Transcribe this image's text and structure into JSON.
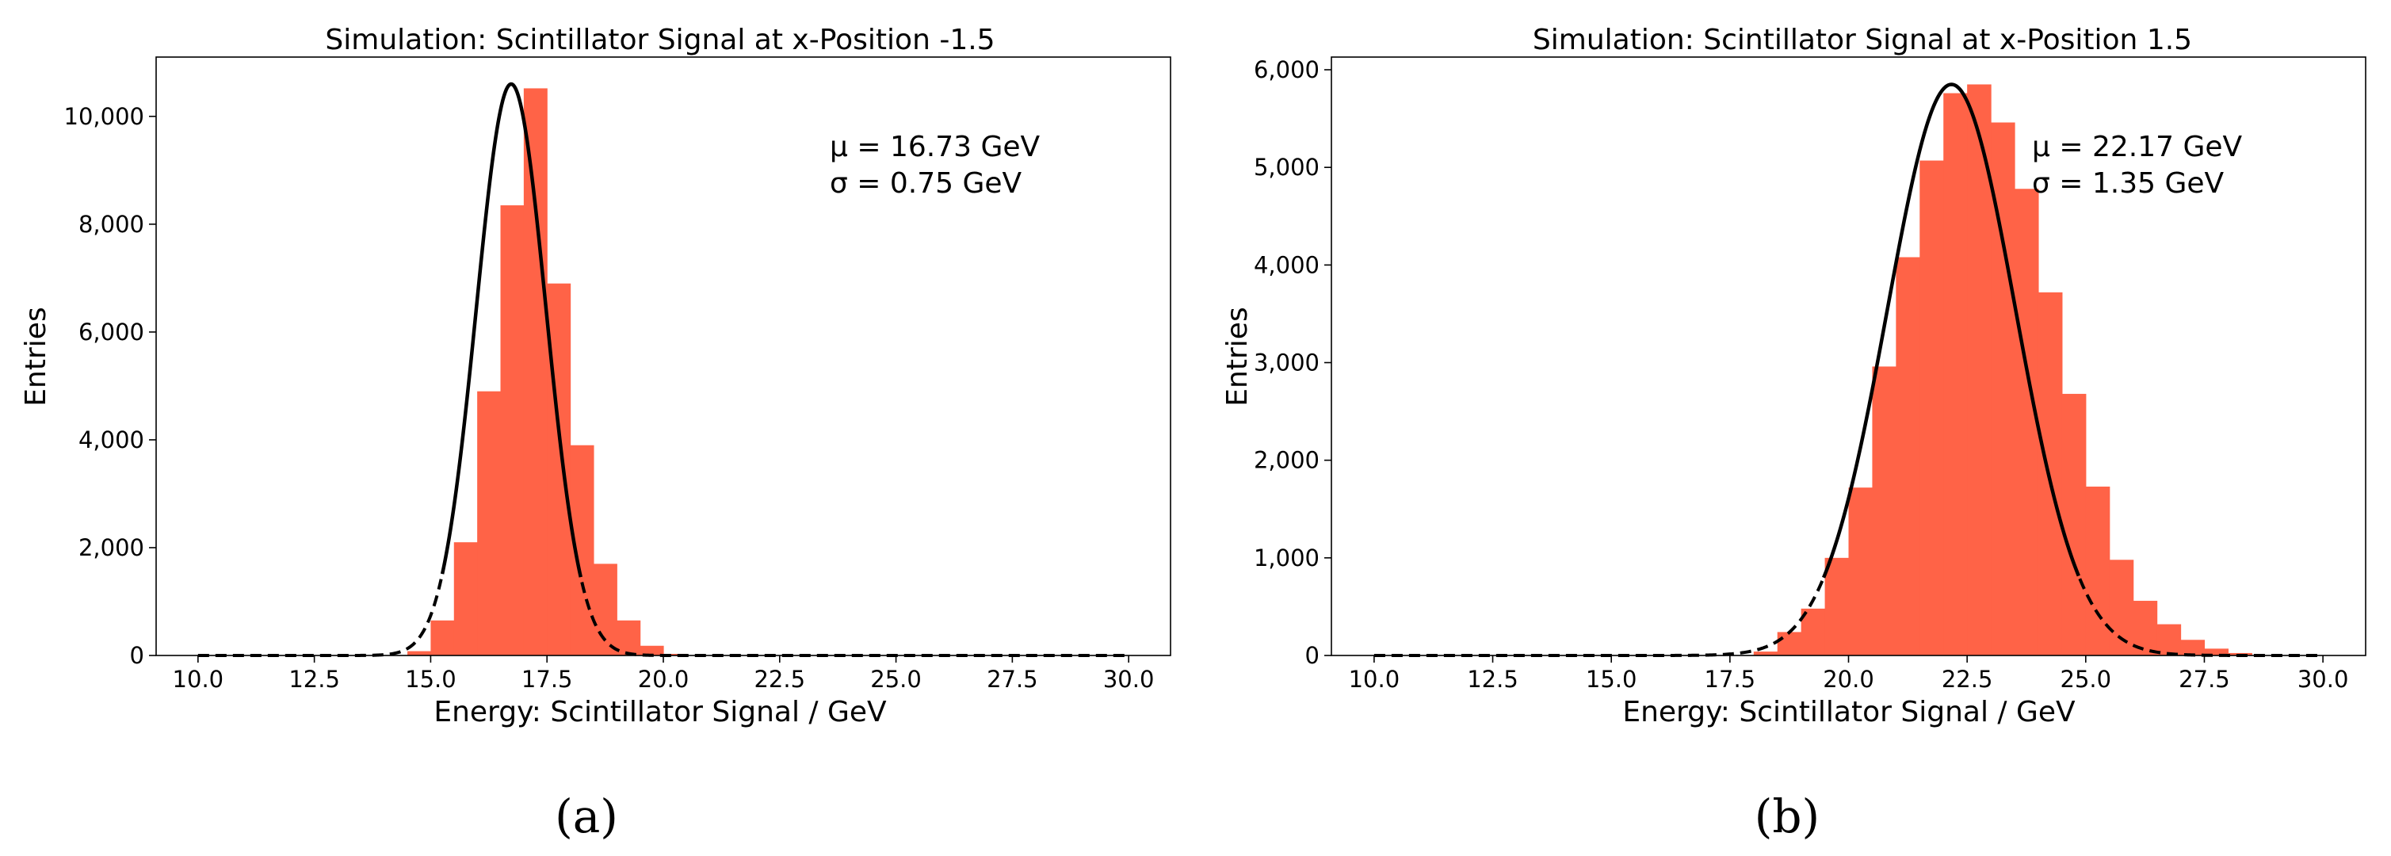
{
  "chart_data": [
    {
      "type": "bar",
      "title": "Simulation: Scintillator Signal at x-Position -1.5",
      "xlabel": "Energy: Scintillator Signal / GeV",
      "ylabel": "Entries",
      "xlim": [
        9.1,
        30.9
      ],
      "ylim": [
        0,
        11100
      ],
      "xticks": [
        "10.0",
        "12.5",
        "15.0",
        "17.5",
        "20.0",
        "22.5",
        "25.0",
        "27.5",
        "30.0"
      ],
      "yticks": [
        "0",
        "2,000",
        "4,000",
        "6,000",
        "8,000",
        "10,000"
      ],
      "bin_width": 0.5,
      "bins": [
        [
          14.5,
          80
        ],
        [
          15.0,
          650
        ],
        [
          15.5,
          2100
        ],
        [
          16.0,
          4900
        ],
        [
          16.5,
          8350
        ],
        [
          17.0,
          10520
        ],
        [
          17.5,
          6900
        ],
        [
          18.0,
          3900
        ],
        [
          18.5,
          1700
        ],
        [
          19.0,
          650
        ],
        [
          19.5,
          180
        ],
        [
          20.0,
          30
        ]
      ],
      "fit": {
        "mu": 16.73,
        "sigma": 0.75,
        "amplitude": 10600
      },
      "annotation": {
        "mu_line": "μ = 16.73 GeV",
        "sigma_line": "σ = 0.75 GeV"
      },
      "caption": "(a)",
      "colors": {
        "bars": "#ff6347",
        "fit": "#000000"
      }
    },
    {
      "type": "bar",
      "title": "Simulation: Scintillator Signal at x-Position 1.5",
      "xlabel": "Energy: Scintillator Signal / GeV",
      "ylabel": "Entries",
      "xlim": [
        9.1,
        30.9
      ],
      "ylim": [
        0,
        6130
      ],
      "xticks": [
        "10.0",
        "12.5",
        "15.0",
        "17.5",
        "20.0",
        "22.5",
        "25.0",
        "27.5",
        "30.0"
      ],
      "yticks": [
        "0",
        "1,000",
        "2,000",
        "3,000",
        "4,000",
        "5,000",
        "6,000"
      ],
      "bin_width": 0.5,
      "bins": [
        [
          18.0,
          40
        ],
        [
          18.5,
          240
        ],
        [
          19.0,
          480
        ],
        [
          19.5,
          1000
        ],
        [
          20.0,
          1720
        ],
        [
          20.5,
          2960
        ],
        [
          21.0,
          4080
        ],
        [
          21.5,
          5070
        ],
        [
          22.0,
          5760
        ],
        [
          22.5,
          5850
        ],
        [
          23.0,
          5460
        ],
        [
          23.5,
          4780
        ],
        [
          24.0,
          3720
        ],
        [
          24.5,
          2680
        ],
        [
          25.0,
          1730
        ],
        [
          25.5,
          980
        ],
        [
          26.0,
          560
        ],
        [
          26.5,
          320
        ],
        [
          27.0,
          160
        ],
        [
          27.5,
          70
        ],
        [
          28.0,
          25
        ]
      ],
      "fit": {
        "mu": 22.17,
        "sigma": 1.35,
        "amplitude": 5850
      },
      "annotation": {
        "mu_line": "μ = 22.17 GeV",
        "sigma_line": "σ = 1.35 GeV"
      },
      "caption": "(b)",
      "colors": {
        "bars": "#ff6347",
        "fit": "#000000"
      }
    }
  ]
}
